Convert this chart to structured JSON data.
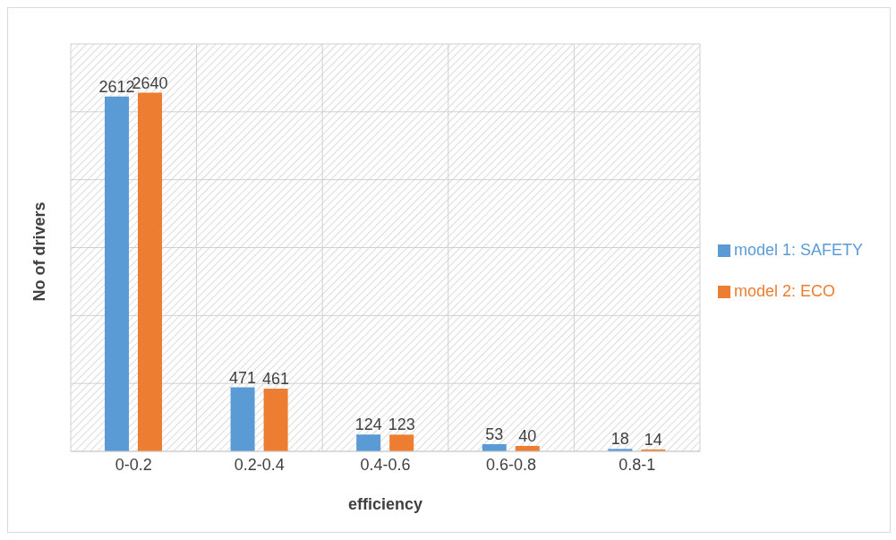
{
  "chart_data": {
    "type": "bar",
    "xlabel": "efficiency",
    "ylabel": "No of drivers",
    "categories": [
      "0-0.2",
      "0.2-0.4",
      "0.4-0.6",
      "0.6-0.8",
      "0.8-1"
    ],
    "series": [
      {
        "name": "model 1: SAFETY",
        "color": "#5b9bd5",
        "values": [
          2612,
          471,
          124,
          53,
          18
        ]
      },
      {
        "name": "model 2: ECO",
        "color": "#ed7d31",
        "values": [
          2640,
          461,
          123,
          40,
          14
        ]
      }
    ],
    "ylim": [
      0,
      3000
    ],
    "yticks": [
      {
        "value": 0,
        "label": null
      },
      {
        "value": 500,
        "label": null
      },
      {
        "value": 1000,
        "label": null
      },
      {
        "value": 1500,
        "label": null
      },
      {
        "value": 2000,
        "label": null
      },
      {
        "value": 2500,
        "label": null
      },
      {
        "value": 3000,
        "label": null
      }
    ],
    "tick_labels": "x",
    "grid": true,
    "legend": "right",
    "data_labels": true
  }
}
